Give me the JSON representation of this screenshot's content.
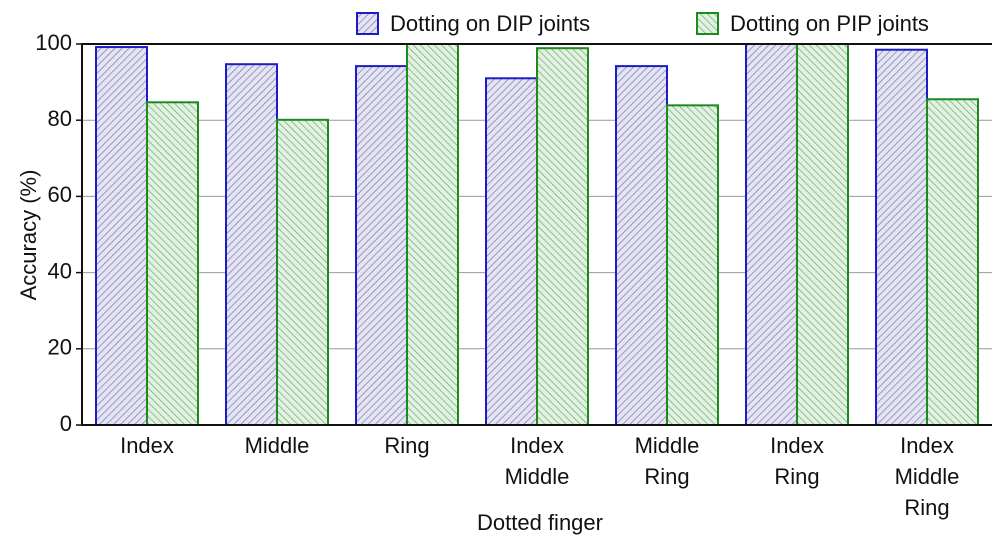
{
  "chart_data": {
    "type": "bar",
    "x_label": "Dotted finger",
    "y_label": "Accuracy (%)",
    "categories": [
      "Index",
      "Middle",
      "Ring",
      "Index Middle",
      "Middle Ring",
      "Index Ring",
      "Index Middle Ring"
    ],
    "series": [
      {
        "name": "Dotting on DIP joints",
        "color": "#1c1cc8",
        "values": [
          99.2,
          94.7,
          94.2,
          91,
          94.2,
          100,
          98.5
        ]
      },
      {
        "name": "Dotting on PIP joints",
        "color": "#1e8a1e",
        "values": [
          84.7,
          80.1,
          100,
          98.9,
          83.9,
          100,
          85.5
        ]
      }
    ],
    "ylim": [
      0,
      100
    ],
    "yticks": [
      0,
      20,
      40,
      60,
      80,
      100
    ],
    "grid": true
  }
}
